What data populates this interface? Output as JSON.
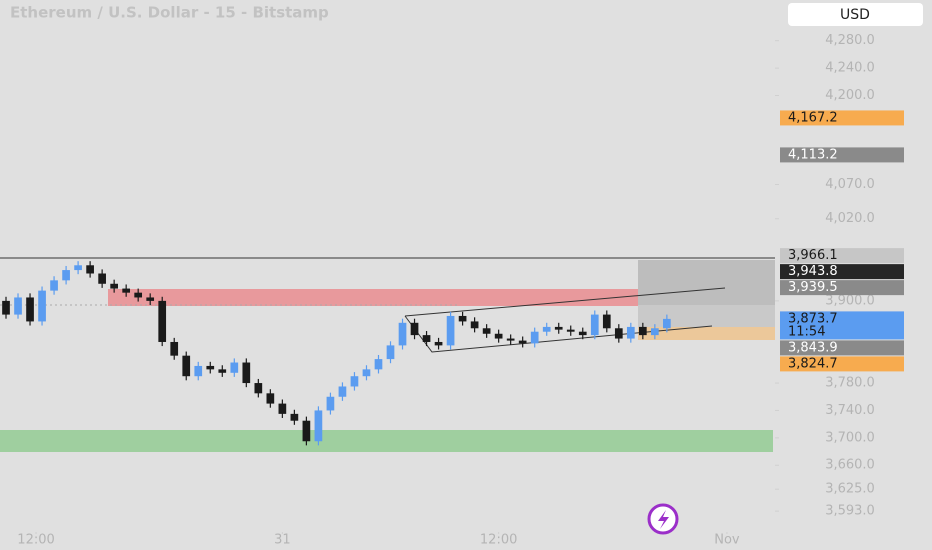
{
  "chart_data": {
    "type": "candlestick",
    "title": "Ethereum / U.S. Dollar - 15 - Bitstamp",
    "currency_button": "USD",
    "x": [
      0,
      1,
      2,
      3,
      4,
      5,
      6,
      7,
      8,
      9,
      10,
      11,
      12,
      13,
      14,
      15,
      16,
      17,
      18,
      19,
      20,
      21,
      22,
      23,
      24,
      25,
      26,
      27,
      28,
      29,
      30,
      31,
      32,
      33,
      34,
      35,
      36,
      37,
      38,
      39,
      40,
      41,
      42,
      43,
      44,
      45,
      46,
      47,
      48,
      49,
      50,
      51,
      52,
      53,
      54,
      55
    ],
    "open": [
      3900,
      3880,
      3905,
      3870,
      3915,
      3930,
      3945,
      3952,
      3940,
      3925,
      3918,
      3912,
      3905,
      3900,
      3840,
      3820,
      3790,
      3805,
      3800,
      3795,
      3810,
      3780,
      3765,
      3750,
      3735,
      3725,
      3695,
      3740,
      3760,
      3775,
      3790,
      3800,
      3815,
      3835,
      3868,
      3850,
      3840,
      3835,
      3878,
      3870,
      3860,
      3852,
      3845,
      3842,
      3838,
      3855,
      3862,
      3858,
      3855,
      3850,
      3880,
      3860,
      3845,
      3862,
      3850,
      3860
    ],
    "high": [
      3906,
      3911,
      3911,
      3921,
      3936,
      3951,
      3958,
      3958,
      3946,
      3931,
      3924,
      3918,
      3911,
      3906,
      3846,
      3826,
      3811,
      3811,
      3806,
      3816,
      3816,
      3786,
      3771,
      3756,
      3741,
      3731,
      3746,
      3766,
      3781,
      3796,
      3806,
      3821,
      3841,
      3874,
      3874,
      3856,
      3846,
      3884,
      3884,
      3876,
      3866,
      3858,
      3851,
      3848,
      3861,
      3868,
      3868,
      3864,
      3861,
      3886,
      3886,
      3866,
      3868,
      3868,
      3866,
      3880
    ],
    "low": [
      3874,
      3874,
      3864,
      3864,
      3909,
      3924,
      3939,
      3934,
      3919,
      3912,
      3906,
      3899,
      3894,
      3834,
      3814,
      3784,
      3784,
      3794,
      3789,
      3789,
      3774,
      3759,
      3744,
      3729,
      3719,
      3689,
      3689,
      3734,
      3754,
      3769,
      3784,
      3794,
      3809,
      3829,
      3844,
      3834,
      3829,
      3829,
      3864,
      3854,
      3846,
      3839,
      3836,
      3832,
      3832,
      3849,
      3852,
      3849,
      3844,
      3844,
      3854,
      3839,
      3839,
      3844,
      3844,
      3854
    ],
    "close": [
      3880,
      3905,
      3870,
      3915,
      3930,
      3945,
      3952,
      3940,
      3925,
      3918,
      3912,
      3905,
      3900,
      3840,
      3820,
      3790,
      3805,
      3800,
      3795,
      3810,
      3780,
      3765,
      3750,
      3735,
      3725,
      3695,
      3740,
      3760,
      3775,
      3790,
      3800,
      3815,
      3835,
      3868,
      3850,
      3840,
      3835,
      3878,
      3870,
      3860,
      3852,
      3845,
      3842,
      3838,
      3855,
      3862,
      3858,
      3855,
      3850,
      3880,
      3860,
      3845,
      3862,
      3850,
      3860,
      3873.7
    ],
    "up_color": "#5b9cf0",
    "down_color": "#1a1a1a",
    "xlim": [
      -0.5,
      64
    ],
    "xticks": [
      {
        "value": 2.5,
        "label": "12:00"
      },
      {
        "value": 23,
        "label": "31"
      },
      {
        "value": 41,
        "label": "12:00"
      },
      {
        "value": 60,
        "label": "Nov"
      }
    ],
    "ylim": [
      3580,
      4300
    ],
    "yticks": [
      {
        "value": 4280,
        "label": "4,280.0"
      },
      {
        "value": 4240,
        "label": "4,240.0"
      },
      {
        "value": 4200,
        "label": "4,200.0"
      },
      {
        "value": 4070,
        "label": "4,070.0"
      },
      {
        "value": 4020,
        "label": "4,020.0"
      },
      {
        "value": 3900,
        "label": "3,900.0"
      },
      {
        "value": 3780,
        "label": "3,780.0"
      },
      {
        "value": 3740,
        "label": "3,740.0"
      },
      {
        "value": 3700,
        "label": "3,700.0"
      },
      {
        "value": 3660,
        "label": "3,660.0"
      },
      {
        "value": 3625,
        "label": "3,625.0"
      },
      {
        "value": 3593,
        "label": "3,593.0"
      }
    ],
    "price_labels": [
      {
        "value": 4167.2,
        "label": "4,167.2",
        "color": "#f7ab4f",
        "text_color": "#1a1a1a"
      },
      {
        "value": 4113.2,
        "label": "4,113.2",
        "color": "#8a8a8a",
        "text_color": "#ffffff"
      },
      {
        "value": 3966.1,
        "label": "3,966.1",
        "color": "#c6c6c6",
        "text_color": "#1a1a1a"
      },
      {
        "value": 3943.8,
        "label": "3,943.8",
        "color": "#262626",
        "text_color": "#ffffff"
      },
      {
        "value": 3939.5,
        "label": "3,939.5",
        "color": "#8a8a8a",
        "text_color": "#ffffff"
      },
      {
        "value": 3873.7,
        "label": "3,873.7",
        "countdown": "11:54",
        "color": "#5b9cf0",
        "text_color": "#1a1a1a"
      },
      {
        "value": 3843.9,
        "label": "3,843.9",
        "color": "#8a8a8a",
        "text_color": "#ffffff"
      },
      {
        "value": 3824.7,
        "label": "3,824.7",
        "color": "#f7ab4f",
        "text_color": "#1a1a1a"
      }
    ]
  }
}
